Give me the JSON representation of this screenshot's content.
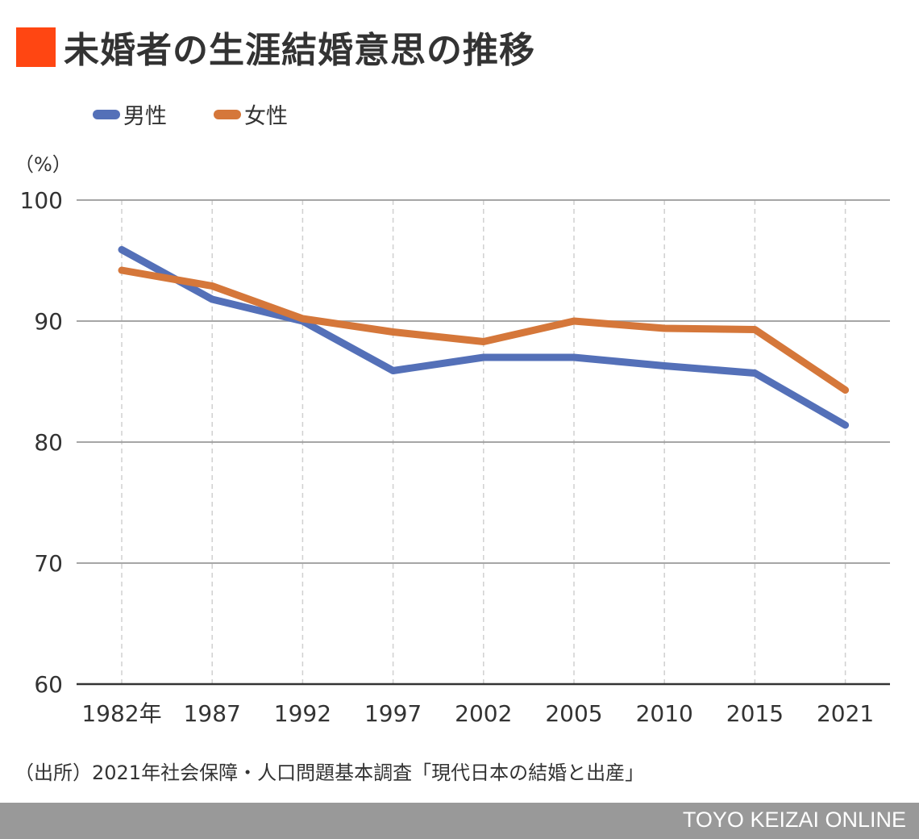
{
  "header": {
    "title": "未婚者の生涯結婚意思の推移",
    "accent_color": "#ff4612"
  },
  "chart_data": {
    "type": "line",
    "title": "未婚者の生涯結婚意思の推移",
    "ylabel": "（%）",
    "xlabel": "",
    "categories": [
      "1982年",
      "1987",
      "1992",
      "1997",
      "2002",
      "2005",
      "2010",
      "2015",
      "2021"
    ],
    "ylim": [
      60,
      100
    ],
    "yticks": [
      100,
      90,
      80,
      70,
      60
    ],
    "grid": true,
    "legend_position": "top-left",
    "series": [
      {
        "name": "男性",
        "color": "#5470b8",
        "values": [
          95.9,
          91.8,
          90.0,
          85.9,
          87.0,
          87.0,
          86.3,
          85.7,
          81.4
        ]
      },
      {
        "name": "女性",
        "color": "#d5773a",
        "values": [
          94.2,
          92.9,
          90.2,
          89.1,
          88.3,
          90.0,
          89.4,
          89.3,
          84.3
        ]
      }
    ]
  },
  "source": "（出所）2021年社会保障・人口問題基本調査「現代日本の結婚と出産」",
  "footer": {
    "brand": "TOYO KEIZAI ONLINE"
  }
}
